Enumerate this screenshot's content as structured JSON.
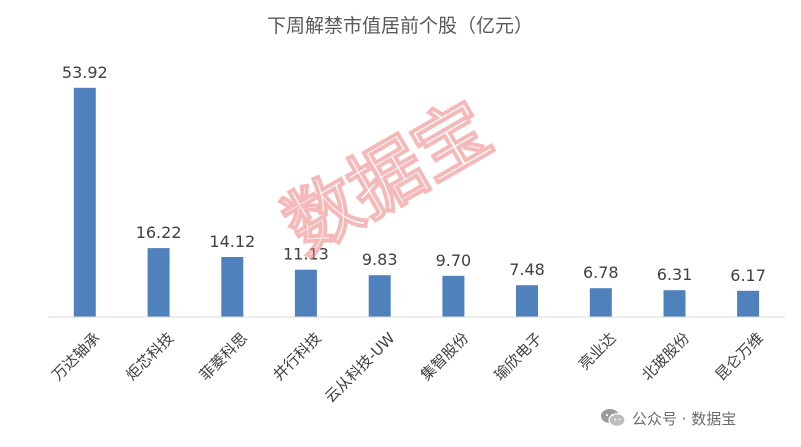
{
  "chart_data": {
    "type": "bar",
    "title": "下周解禁市值居前个股（亿元）",
    "categories": [
      "万达轴承",
      "炬芯科技",
      "菲菱科思",
      "井行科技",
      "云从科技-UW",
      "集智股份",
      "瑜欣电子",
      "亮业达",
      "北玻股份",
      "昆仑万维"
    ],
    "values": [
      53.92,
      16.22,
      14.12,
      11.13,
      9.83,
      9.7,
      7.48,
      6.78,
      6.31,
      6.17
    ],
    "value_labels": [
      "53.92",
      "16.22",
      "14.12",
      "11.13",
      "9.83",
      "9.70",
      "7.48",
      "6.78",
      "6.31",
      "6.17"
    ],
    "ylim": [
      0,
      56
    ],
    "grid": false,
    "legend": "none",
    "bar_color": "#4f81bd"
  },
  "watermark": {
    "text": "数据宝",
    "color": "#f08080"
  },
  "footer": {
    "icon": "wechat-icon",
    "text": "公众号 · 数据宝"
  }
}
